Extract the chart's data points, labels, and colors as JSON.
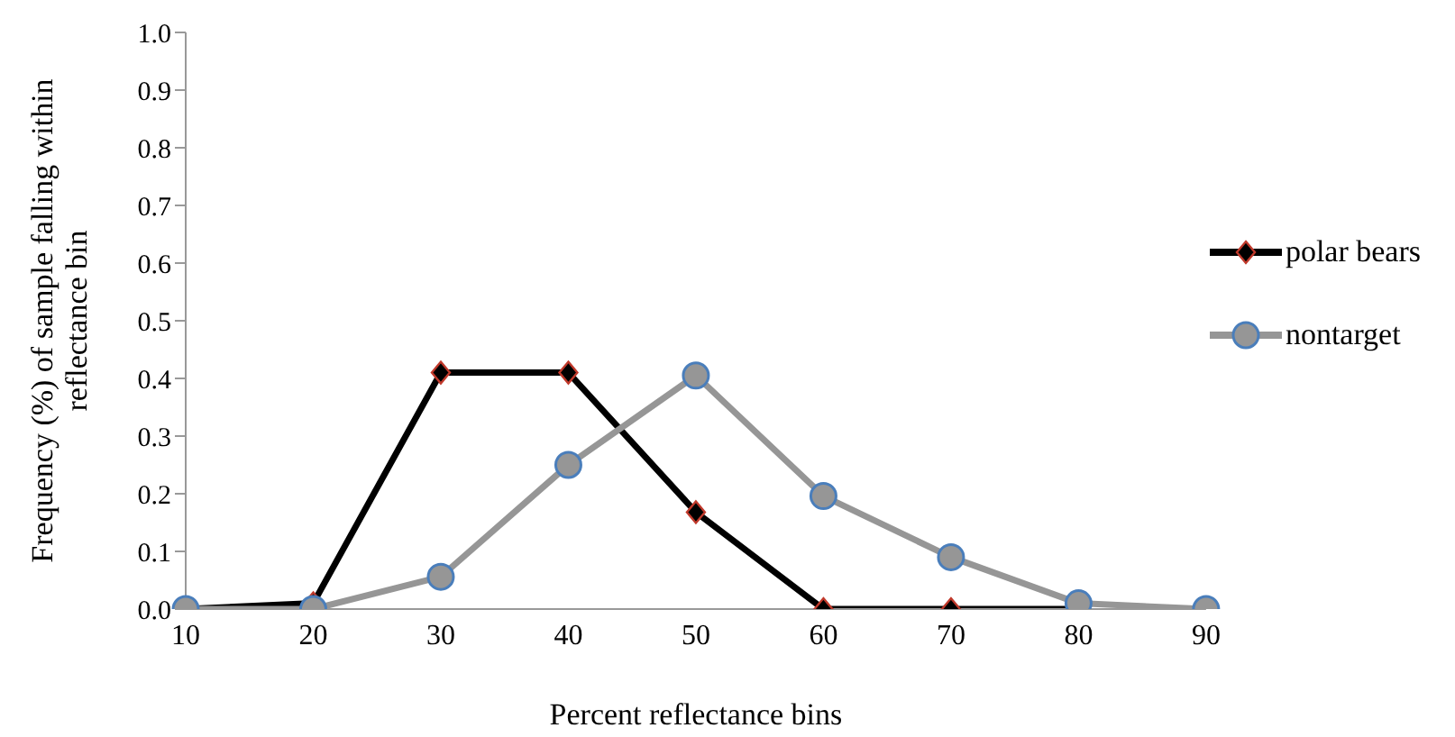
{
  "chart_data": {
    "type": "line",
    "xlabel": "Percent reflectance bins",
    "ylabel": "Frequency (%) of sample falling within reflectance bin",
    "categories": [
      "10",
      "20",
      "30",
      "40",
      "50",
      "60",
      "70",
      "80",
      "90"
    ],
    "series": [
      {
        "name": "polar bears",
        "color": "#000000",
        "marker": "diamond",
        "values": [
          0,
          0.01,
          0.41,
          0.41,
          0.168,
          0,
          0,
          0,
          null
        ]
      },
      {
        "name": "nontarget",
        "color": "#969696",
        "marker": "circle",
        "values": [
          0,
          0,
          0.056,
          0.25,
          0.405,
          0.196,
          0.09,
          0.01,
          0
        ]
      }
    ],
    "ylim": [
      0,
      1
    ],
    "yticks": [
      {
        "value": 0,
        "label": "0.0"
      },
      0.1,
      0.2,
      0.3,
      0.4,
      0.5,
      0.6,
      0.7,
      0.8,
      0.9,
      {
        "value": 1,
        "label": "1.0"
      }
    ],
    "grid": false,
    "legend": "right"
  }
}
